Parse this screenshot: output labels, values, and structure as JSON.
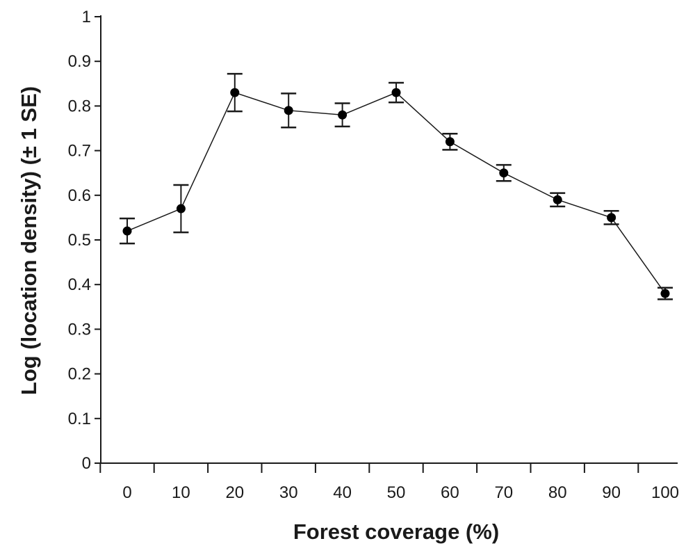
{
  "chart_data": {
    "type": "line",
    "title": "",
    "xlabel": "Forest coverage (%)",
    "ylabel": "Log (location density) (± 1 SE)",
    "x": [
      0,
      10,
      20,
      30,
      40,
      50,
      60,
      70,
      80,
      90,
      100
    ],
    "x_tick_labels": [
      "0",
      "10",
      "20",
      "30",
      "40",
      "50",
      "60",
      "70",
      "80",
      "90",
      "100"
    ],
    "y_tick_labels": [
      "0",
      "0.1",
      "0.2",
      "0.3",
      "0.4",
      "0.5",
      "0.6",
      "0.7",
      "0.8",
      "0.9",
      "1"
    ],
    "ylim": [
      0,
      1
    ],
    "series": [
      {
        "values": [
          0.52,
          0.57,
          0.83,
          0.79,
          0.78,
          0.83,
          0.72,
          0.65,
          0.59,
          0.55,
          0.38
        ],
        "se": [
          0.028,
          0.053,
          0.042,
          0.038,
          0.026,
          0.022,
          0.018,
          0.018,
          0.015,
          0.015,
          0.013
        ]
      }
    ],
    "error_bars": "± 1 SE",
    "grid": false,
    "legend": "none",
    "colors": {
      "line": "#1a1a1a",
      "marker": "#000000",
      "axis": "#1a1a1a"
    }
  }
}
